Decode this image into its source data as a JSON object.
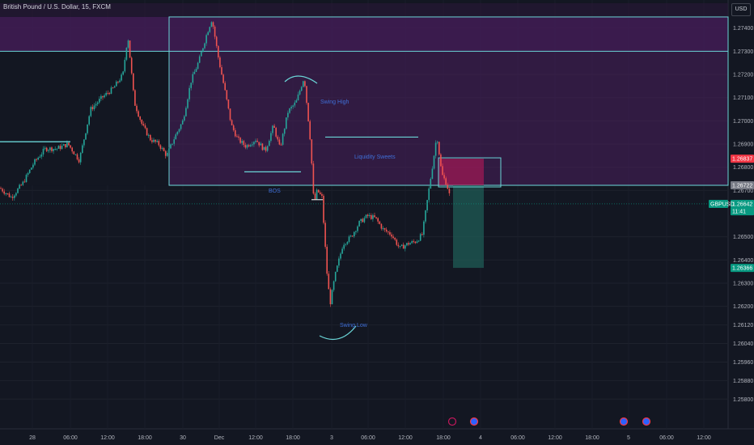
{
  "header": {
    "symbol_name": "British Pound / U.S. Dollar, 15, FXCM",
    "currency_button": "USD"
  },
  "colors": {
    "background": "#131722",
    "zone_fill": "#4a1f5c",
    "zone_line": "#6ad4d6",
    "up_candle": "#26a69a",
    "down_candle": "#ef5350",
    "annotation": "#3f6fd8",
    "stop_fill": "#c2185b",
    "target_fill": "#1f5c55"
  },
  "chart_data": {
    "type": "candlestick",
    "symbol": "GBPUSD",
    "interval": "15",
    "ylim": [
      1.2574,
      1.2746
    ],
    "y_ticks": [
      "1.27400",
      "1.27300",
      "1.27200",
      "1.27100",
      "1.27000",
      "1.26900",
      "1.26800",
      "1.26700",
      "1.26500",
      "1.26400",
      "1.26300",
      "1.26200",
      "1.26120",
      "1.26040",
      "1.25960",
      "1.25880",
      "1.25800"
    ],
    "x_ticks": [
      "28",
      "06:00",
      "12:00",
      "18:00",
      "30",
      "Dec",
      "12:00",
      "18:00",
      "3",
      "06:00",
      "12:00",
      "18:00",
      "4",
      "06:00",
      "12:00",
      "18:00",
      "5",
      "06:00",
      "12:00"
    ],
    "price_path": [
      [
        0,
        1.2671
      ],
      [
        14,
        1.2667
      ],
      [
        28,
        1.2673
      ],
      [
        42,
        1.2682
      ],
      [
        56,
        1.2688
      ],
      [
        70,
        1.2688
      ],
      [
        84,
        1.269
      ],
      [
        98,
        1.2683
      ],
      [
        112,
        1.2705
      ],
      [
        126,
        1.271
      ],
      [
        140,
        1.2714
      ],
      [
        152,
        1.272
      ],
      [
        158,
        1.2737
      ],
      [
        166,
        1.2708
      ],
      [
        176,
        1.2698
      ],
      [
        186,
        1.2692
      ],
      [
        196,
        1.269
      ],
      [
        206,
        1.2685
      ],
      [
        216,
        1.2693
      ],
      [
        226,
        1.27
      ],
      [
        236,
        1.2717
      ],
      [
        246,
        1.2726
      ],
      [
        256,
        1.2738
      ],
      [
        262,
        1.2744
      ],
      [
        270,
        1.2727
      ],
      [
        278,
        1.2713
      ],
      [
        286,
        1.2698
      ],
      [
        294,
        1.2692
      ],
      [
        304,
        1.2689
      ],
      [
        316,
        1.2692
      ],
      [
        328,
        1.2687
      ],
      [
        338,
        1.2698
      ],
      [
        346,
        1.2688
      ],
      [
        356,
        1.2704
      ],
      [
        366,
        1.2708
      ],
      [
        376,
        1.2719
      ],
      [
        384,
        1.269
      ],
      [
        388,
        1.2664
      ],
      [
        392,
        1.267
      ],
      [
        398,
        1.2667
      ],
      [
        404,
        1.2635
      ],
      [
        408,
        1.2621
      ],
      [
        414,
        1.2633
      ],
      [
        424,
        1.2647
      ],
      [
        434,
        1.265
      ],
      [
        444,
        1.2656
      ],
      [
        454,
        1.2659
      ],
      [
        464,
        1.2658
      ],
      [
        474,
        1.2653
      ],
      [
        484,
        1.2651
      ],
      [
        494,
        1.2645
      ],
      [
        504,
        1.2647
      ],
      [
        514,
        1.2648
      ],
      [
        522,
        1.2651
      ],
      [
        530,
        1.267
      ],
      [
        536,
        1.2684
      ],
      [
        540,
        1.2694
      ],
      [
        546,
        1.2677
      ],
      [
        552,
        1.2673
      ],
      [
        557,
        1.2666
      ]
    ],
    "current_price": 1.26642,
    "price_tags": [
      {
        "label": "1.26837",
        "value": 1.26837,
        "color": "#f23645"
      },
      {
        "label": "1.26722",
        "value": 1.26722,
        "color": "#787b86"
      },
      {
        "label": "1.26642",
        "value": 1.26642,
        "color": "#089981"
      },
      {
        "label": "11:41",
        "value": 1.2661,
        "color": "#089981"
      },
      {
        "label": "1.26366",
        "value": 1.26366,
        "color": "#089981"
      }
    ],
    "symbol_tag": "GBPUSD",
    "levels": [
      {
        "name": "zone-top",
        "value": 1.27448
      },
      {
        "name": "zone-mid",
        "value": 1.273
      },
      {
        "name": "zone-bottom",
        "value": 1.26722
      },
      {
        "name": "liquidity-line",
        "value": 1.2693
      },
      {
        "name": "left-line",
        "value": 1.2691
      },
      {
        "name": "bos-line",
        "value": 1.2678
      }
    ],
    "annotations": [
      "Swing High",
      "Liquidity Sweets",
      "BOS",
      "Swing Low"
    ],
    "events": [
      "event-1",
      "event-2",
      "event-3",
      "event-4"
    ]
  }
}
